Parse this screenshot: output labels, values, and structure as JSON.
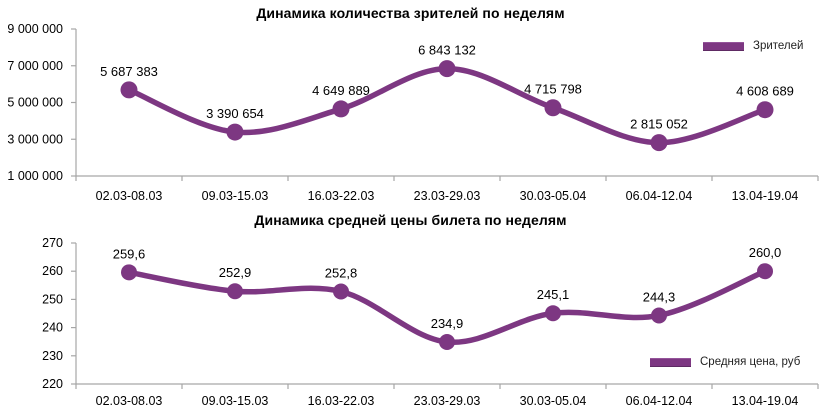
{
  "colors": {
    "series": "#7d3782",
    "series_edge": "#5e2a63",
    "axis": "#a6a6a6",
    "text": "#000000"
  },
  "chart_data": [
    {
      "type": "line",
      "title": "Динамика количества зрителей по неделям",
      "legend": "Зрителей",
      "legend_position": "top-right",
      "grid": false,
      "smooth": true,
      "categories": [
        "02.03-08.03",
        "09.03-15.03",
        "16.03-22.03",
        "23.03-29.03",
        "30.03-05.04",
        "06.04-12.04",
        "13.04-19.04"
      ],
      "series": [
        {
          "name": "Зрителей",
          "values": [
            5687383,
            3390654,
            4649889,
            6843132,
            4715798,
            2815052,
            4608689
          ]
        }
      ],
      "point_labels": [
        "5 687 383",
        "3 390 654",
        "4 649 889",
        "6 843 132",
        "4 715 798",
        "2 815 052",
        "4 608 689"
      ],
      "ylim": [
        1000000,
        9000000
      ],
      "y_ticks": [
        9000000,
        7000000,
        5000000,
        3000000,
        1000000
      ],
      "y_tick_labels": [
        "9 000 000",
        "7 000 000",
        "5 000 000",
        "3 000 000",
        "1 000 000"
      ],
      "xlabel": "",
      "ylabel": ""
    },
    {
      "type": "line",
      "title": "Динамика средней цены билета по неделям",
      "legend": "Средняя цена, руб",
      "legend_position": "bottom-right",
      "grid": false,
      "smooth": true,
      "categories": [
        "02.03-08.03",
        "09.03-15.03",
        "16.03-22.03",
        "23.03-29.03",
        "30.03-05.04",
        "06.04-12.04",
        "13.04-19.04"
      ],
      "series": [
        {
          "name": "Средняя цена, руб",
          "values": [
            259.6,
            252.9,
            252.8,
            234.9,
            245.1,
            244.3,
            260.0
          ]
        }
      ],
      "point_labels": [
        "259,6",
        "252,9",
        "252,8",
        "234,9",
        "245,1",
        "244,3",
        "260,0"
      ],
      "ylim": [
        220,
        270
      ],
      "y_ticks": [
        270,
        260,
        250,
        240,
        230,
        220
      ],
      "y_tick_labels": [
        "270",
        "260",
        "250",
        "240",
        "230",
        "220"
      ],
      "xlabel": "",
      "ylabel": ""
    }
  ]
}
